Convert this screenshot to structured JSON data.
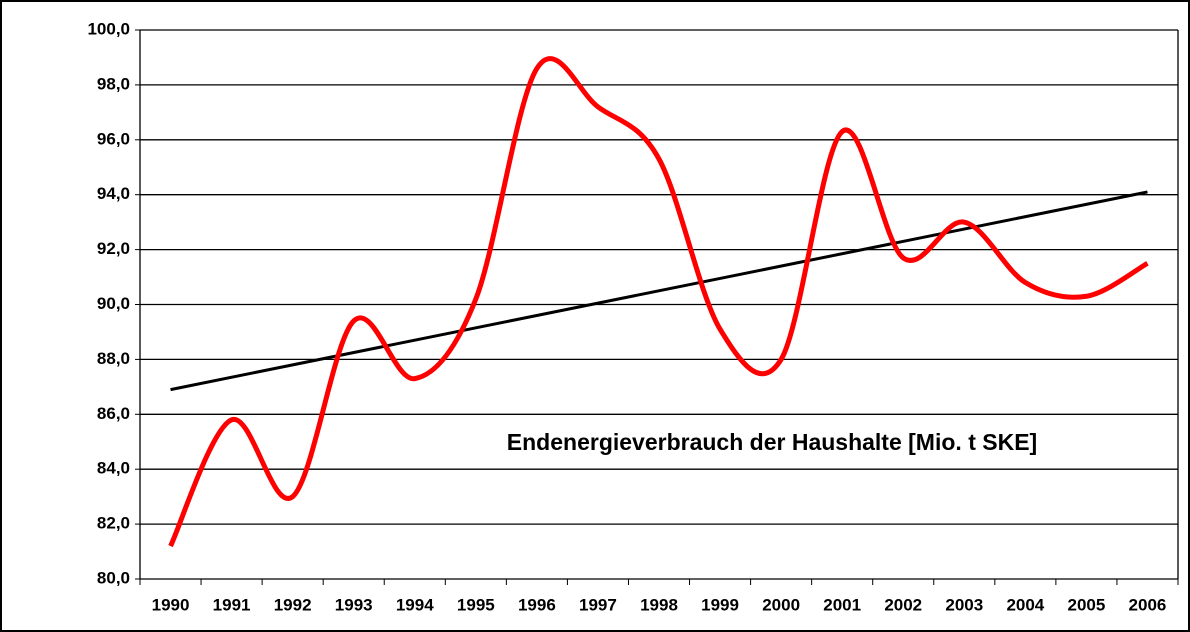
{
  "chart_data": {
    "type": "line",
    "title": "Endenergieverbrauch der Haushalte [Mio. t SKE]",
    "categories": [
      "1990",
      "1991",
      "1992",
      "1993",
      "1994",
      "1995",
      "1996",
      "1997",
      "1998",
      "1999",
      "2000",
      "2001",
      "2002",
      "2003",
      "2004",
      "2005",
      "2006"
    ],
    "series": [
      {
        "color": "#ff0000",
        "smooth": true,
        "values": [
          81.2,
          85.8,
          83.0,
          89.4,
          87.3,
          90.2,
          98.6,
          97.2,
          95.3,
          89.1,
          88.0,
          96.3,
          91.7,
          93.0,
          90.8,
          90.3,
          91.5
        ]
      },
      {
        "color": "#000000",
        "smooth": false,
        "values": [
          86.9,
          null,
          null,
          null,
          null,
          null,
          null,
          null,
          null,
          null,
          null,
          null,
          null,
          null,
          null,
          null,
          94.1
        ]
      }
    ],
    "ylim": [
      80,
      100
    ],
    "yticks": [
      {
        "value": 80,
        "label": "80,0"
      },
      {
        "value": 82,
        "label": "82,0"
      },
      {
        "value": 84,
        "label": "84,0"
      },
      {
        "value": 86,
        "label": "86,0"
      },
      {
        "value": 88,
        "label": "88,0"
      },
      {
        "value": 90,
        "label": "90,0"
      },
      {
        "value": 92,
        "label": "92,0"
      },
      {
        "value": 94,
        "label": "94,0"
      },
      {
        "value": 96,
        "label": "96,0"
      },
      {
        "value": 98,
        "label": "98,0"
      },
      {
        "value": 100,
        "label": "100,0"
      }
    ],
    "grid": true
  }
}
